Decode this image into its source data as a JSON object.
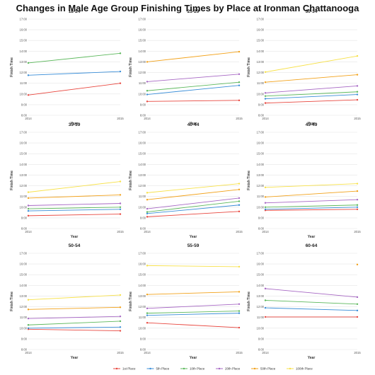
{
  "title": "Changes in Male Age Group Finishing Times by Place at Ironman Chattanooga",
  "colors": {
    "1st Place": "#e8473f",
    "5th Place": "#3a8ed8",
    "10th Place": "#5cb85c",
    "20th Place": "#a768c4",
    "50th Place": "#f2a21b",
    "100th Place": "#f7e14a"
  },
  "legend": [
    "1st Place",
    "5th Place",
    "10th Place",
    "20th Place",
    "50th Place",
    "100th Place"
  ],
  "chart_data": [
    {
      "type": "line",
      "title": "18-24",
      "x": [
        "2014",
        "2015"
      ],
      "xlabel": "Year",
      "ylabel": "Finish Time",
      "yticks": [
        "8:00",
        "9:00",
        "10:00",
        "11:00",
        "12:00",
        "13:00",
        "14:00",
        "15:00",
        "16:00",
        "17:00"
      ],
      "ylim": [
        8,
        17
      ],
      "series": [
        {
          "name": "1st Place",
          "values": [
            9.9,
            11.0
          ]
        },
        {
          "name": "5th Place",
          "values": [
            11.75,
            12.1
          ]
        },
        {
          "name": "10th Place",
          "values": [
            12.9,
            13.8
          ]
        }
      ]
    },
    {
      "type": "line",
      "title": "25-29",
      "x": [
        "2014",
        "2015"
      ],
      "xlabel": "Year",
      "ylabel": "Finish Time",
      "yticks": [
        "8:00",
        "9:00",
        "10:00",
        "11:00",
        "12:00",
        "13:00",
        "14:00",
        "15:00",
        "16:00",
        "17:00"
      ],
      "ylim": [
        8,
        17
      ],
      "series": [
        {
          "name": "1st Place",
          "values": [
            9.3,
            9.4
          ]
        },
        {
          "name": "5th Place",
          "values": [
            9.95,
            10.8
          ]
        },
        {
          "name": "10th Place",
          "values": [
            10.3,
            11.1
          ]
        },
        {
          "name": "20th Place",
          "values": [
            11.15,
            11.85
          ]
        },
        {
          "name": "50th Place",
          "values": [
            13.0,
            13.95
          ]
        }
      ]
    },
    {
      "type": "line",
      "title": "30-34",
      "x": [
        "2014",
        "2015"
      ],
      "xlabel": "Year",
      "ylabel": "Finish Time",
      "yticks": [
        "8:00",
        "9:00",
        "10:00",
        "11:00",
        "12:00",
        "13:00",
        "14:00",
        "15:00",
        "16:00",
        "17:00"
      ],
      "ylim": [
        8,
        17
      ],
      "series": [
        {
          "name": "1st Place",
          "values": [
            9.15,
            9.45
          ]
        },
        {
          "name": "5th Place",
          "values": [
            9.55,
            9.95
          ]
        },
        {
          "name": "10th Place",
          "values": [
            9.8,
            10.2
          ]
        },
        {
          "name": "20th Place",
          "values": [
            10.1,
            10.75
          ]
        },
        {
          "name": "50th Place",
          "values": [
            11.1,
            11.8
          ]
        },
        {
          "name": "100th Place",
          "values": [
            12.05,
            13.55
          ]
        }
      ]
    },
    {
      "type": "line",
      "title": "35-39",
      "x": [
        "2014",
        "2015"
      ],
      "xlabel": "Year",
      "ylabel": "Finish Time",
      "yticks": [
        "8:00",
        "9:00",
        "10:00",
        "11:00",
        "12:00",
        "13:00",
        "14:00",
        "15:00",
        "16:00",
        "17:00"
      ],
      "ylim": [
        8,
        17
      ],
      "series": [
        {
          "name": "1st Place",
          "values": [
            9.2,
            9.35
          ]
        },
        {
          "name": "5th Place",
          "values": [
            9.65,
            9.8
          ]
        },
        {
          "name": "10th Place",
          "values": [
            9.85,
            10.0
          ]
        },
        {
          "name": "20th Place",
          "values": [
            10.15,
            10.35
          ]
        },
        {
          "name": "50th Place",
          "values": [
            10.85,
            11.15
          ]
        },
        {
          "name": "100th Place",
          "values": [
            11.4,
            12.4
          ]
        }
      ]
    },
    {
      "type": "line",
      "title": "40-44",
      "x": [
        "2014",
        "2015"
      ],
      "xlabel": "Year",
      "ylabel": "Finish Time",
      "yticks": [
        "8:00",
        "9:00",
        "10:00",
        "11:00",
        "12:00",
        "13:00",
        "14:00",
        "15:00",
        "16:00",
        "17:00"
      ],
      "ylim": [
        8,
        17
      ],
      "series": [
        {
          "name": "1st Place",
          "values": [
            9.1,
            9.6
          ]
        },
        {
          "name": "5th Place",
          "values": [
            9.4,
            10.2
          ]
        },
        {
          "name": "10th Place",
          "values": [
            9.55,
            10.55
          ]
        },
        {
          "name": "20th Place",
          "values": [
            9.85,
            10.85
          ]
        },
        {
          "name": "50th Place",
          "values": [
            10.7,
            11.65
          ]
        },
        {
          "name": "100th Place",
          "values": [
            11.35,
            12.2
          ]
        }
      ]
    },
    {
      "type": "line",
      "title": "45-49",
      "x": [
        "2014",
        "2015"
      ],
      "xlabel": "Year",
      "ylabel": "Finish Time",
      "yticks": [
        "8:00",
        "9:00",
        "10:00",
        "11:00",
        "12:00",
        "13:00",
        "14:00",
        "15:00",
        "16:00",
        "17:00"
      ],
      "ylim": [
        8,
        17
      ],
      "series": [
        {
          "name": "1st Place",
          "values": [
            9.7,
            9.8
          ]
        },
        {
          "name": "5th Place",
          "values": [
            9.8,
            10.0
          ]
        },
        {
          "name": "10th Place",
          "values": [
            10.0,
            10.2
          ]
        },
        {
          "name": "20th Place",
          "values": [
            10.4,
            10.7
          ]
        },
        {
          "name": "50th Place",
          "values": [
            10.95,
            11.5
          ]
        },
        {
          "name": "100th Place",
          "values": [
            11.85,
            12.2
          ]
        }
      ]
    },
    {
      "type": "line",
      "title": "50-54",
      "x": [
        "2014",
        "2015"
      ],
      "xlabel": "Year",
      "ylabel": "Finish Time",
      "yticks": [
        "8:00",
        "9:00",
        "10:00",
        "11:00",
        "12:00",
        "13:00",
        "14:00",
        "15:00",
        "16:00",
        "17:00"
      ],
      "ylim": [
        8,
        17
      ],
      "series": [
        {
          "name": "1st Place",
          "values": [
            9.9,
            9.75
          ]
        },
        {
          "name": "5th Place",
          "values": [
            10.0,
            10.1
          ]
        },
        {
          "name": "10th Place",
          "values": [
            10.3,
            10.65
          ]
        },
        {
          "name": "20th Place",
          "values": [
            10.9,
            11.1
          ]
        },
        {
          "name": "50th Place",
          "values": [
            11.75,
            11.95
          ]
        },
        {
          "name": "100th Place",
          "values": [
            12.65,
            13.1
          ]
        }
      ]
    },
    {
      "type": "line",
      "title": "55-59",
      "x": [
        "2014",
        "2015"
      ],
      "xlabel": "Year",
      "ylabel": "Finish Time",
      "yticks": [
        "8:00",
        "9:00",
        "10:00",
        "11:00",
        "12:00",
        "13:00",
        "14:00",
        "15:00",
        "16:00",
        "17:00"
      ],
      "ylim": [
        8,
        17
      ],
      "series": [
        {
          "name": "1st Place",
          "values": [
            10.5,
            10.05
          ]
        },
        {
          "name": "5th Place",
          "values": [
            11.2,
            11.4
          ]
        },
        {
          "name": "10th Place",
          "values": [
            11.4,
            11.6
          ]
        },
        {
          "name": "20th Place",
          "values": [
            11.85,
            12.25
          ]
        },
        {
          "name": "50th Place",
          "values": [
            13.15,
            13.4
          ]
        },
        {
          "name": "100th Place",
          "values": [
            15.85,
            15.75
          ]
        }
      ]
    },
    {
      "type": "line",
      "title": "60-64",
      "x": [
        "2014",
        "2015"
      ],
      "xlabel": "Year",
      "ylabel": "Finish Time",
      "yticks": [
        "8:00",
        "9:00",
        "10:00",
        "11:00",
        "12:00",
        "13:00",
        "14:00",
        "15:00",
        "16:00",
        "17:00"
      ],
      "ylim": [
        8,
        17
      ],
      "series": [
        {
          "name": "1st Place",
          "values": [
            11.05,
            11.05
          ]
        },
        {
          "name": "5th Place",
          "values": [
            11.9,
            11.65
          ]
        },
        {
          "name": "10th Place",
          "values": [
            12.6,
            12.25
          ]
        },
        {
          "name": "20th Place",
          "values": [
            13.7,
            12.9
          ]
        },
        {
          "name": "50th Place",
          "values": [
            null,
            15.95
          ]
        }
      ]
    }
  ]
}
